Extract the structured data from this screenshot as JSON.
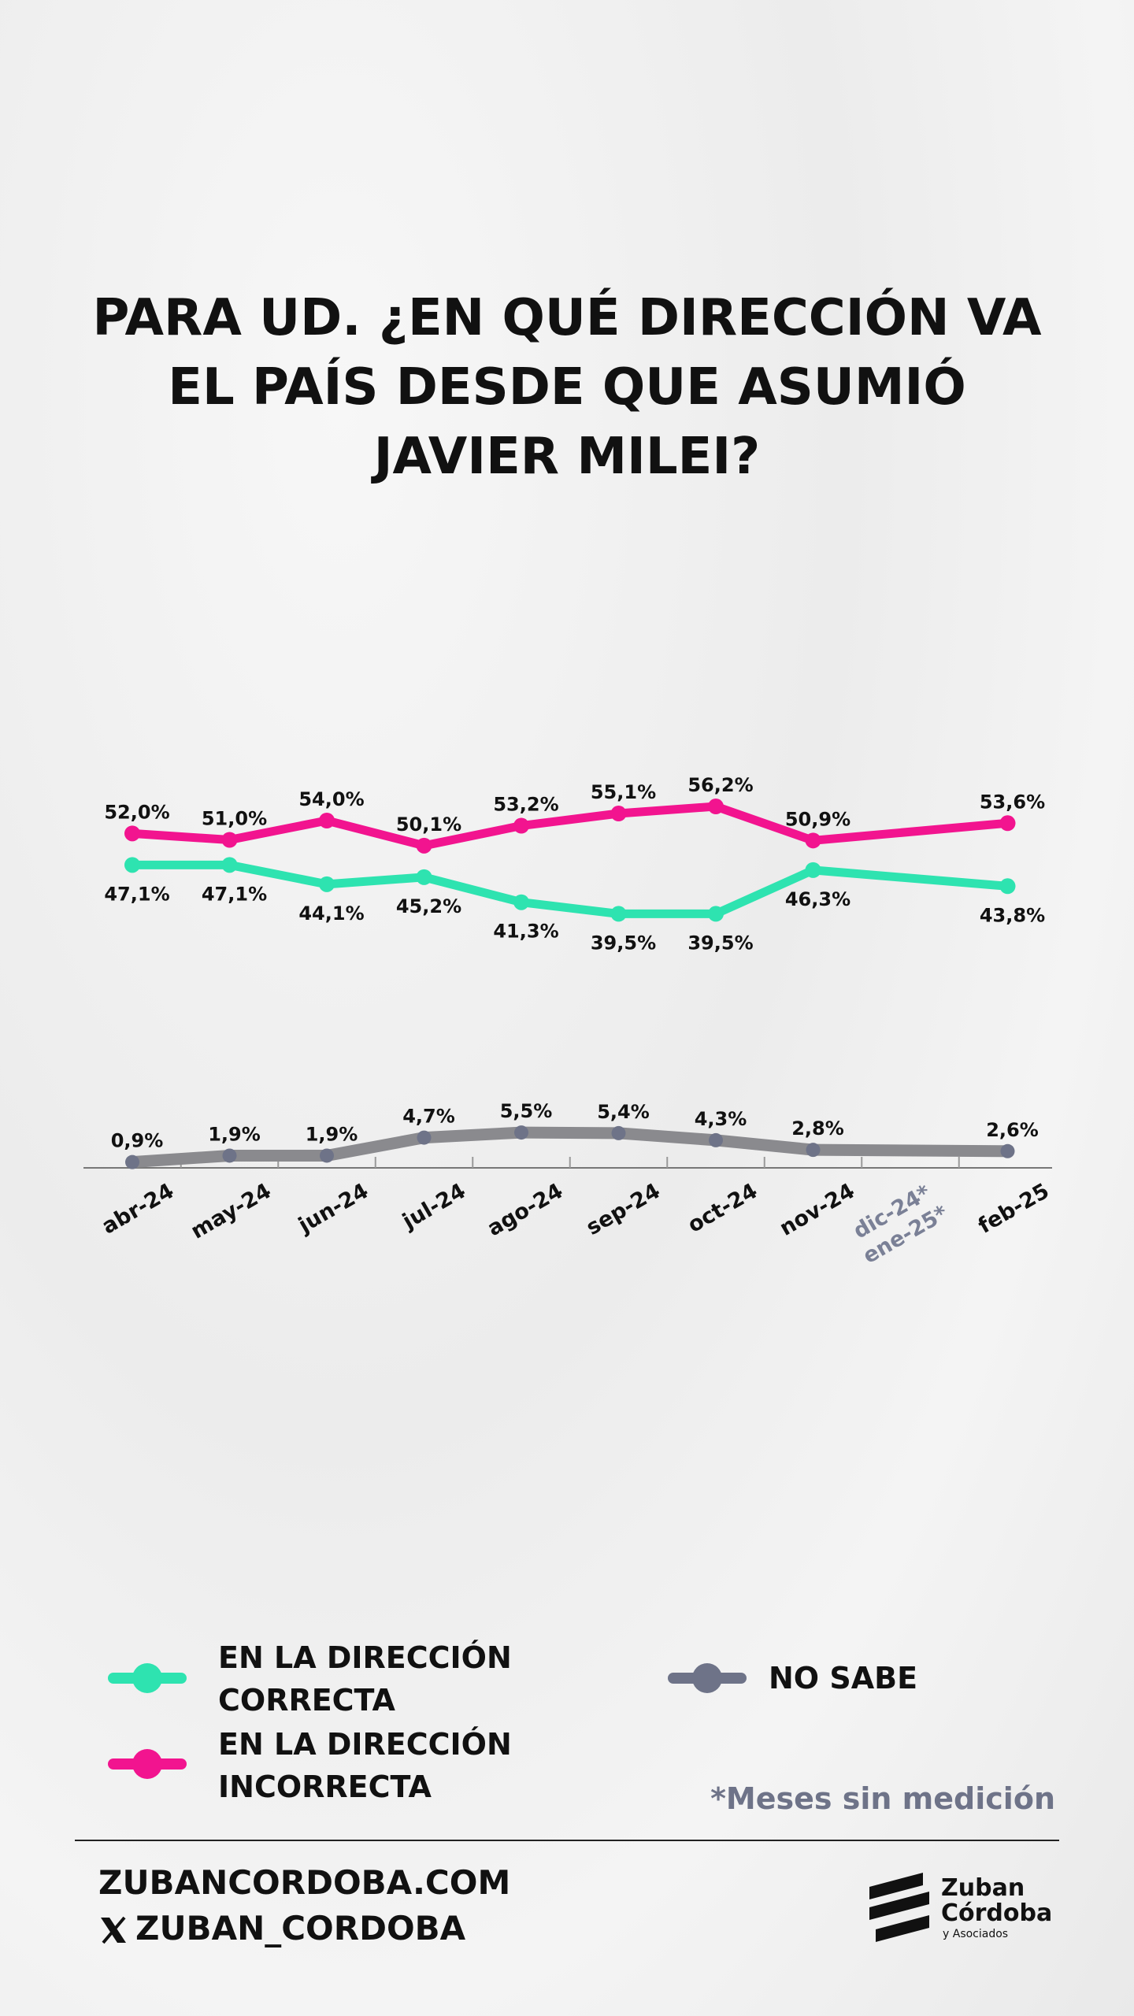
{
  "chart_data": {
    "type": "line",
    "title": "PARA UD. ¿EN QUÉ DIRECCIÓN VA EL PAÍS DESDE QUE ASUMIÓ JAVIER MILEI?",
    "categories": [
      "abr-24",
      "may-24",
      "jun-24",
      "jul-24",
      "ago-24",
      "sep-24",
      "oct-24",
      "nov-24",
      [
        "dic-24*",
        "ene-25*"
      ],
      "feb-25"
    ],
    "ylim": [
      0,
      60
    ],
    "series": [
      {
        "name": "EN LA DIRECCIÓN INCORRECTA",
        "color": "#f2148f",
        "values": [
          52.0,
          51.0,
          54.0,
          50.1,
          53.2,
          55.1,
          56.2,
          50.9,
          null,
          53.6
        ],
        "value_labels": [
          "52,0%",
          "51,0%",
          "54,0%",
          "50,1%",
          "53,2%",
          "55,1%",
          "56,2%",
          "50,9%",
          null,
          "53,6%"
        ]
      },
      {
        "name": "EN LA DIRECCIÓN CORRECTA",
        "color": "#2ee3b0",
        "values": [
          47.1,
          47.1,
          44.1,
          45.2,
          41.3,
          39.5,
          39.5,
          46.3,
          null,
          43.8
        ],
        "value_labels": [
          "47,1%",
          "47,1%",
          "44,1%",
          "45,2%",
          "41,3%",
          "39,5%",
          "39,5%",
          "46,3%",
          null,
          "43,8%"
        ]
      },
      {
        "name": "NO SABE",
        "color": "#6e7388",
        "values": [
          0.9,
          1.9,
          1.9,
          4.7,
          5.5,
          5.4,
          4.3,
          2.8,
          null,
          2.6
        ],
        "value_labels": [
          "0,9%",
          "1,9%",
          "1,9%",
          "4,7%",
          "5,5%",
          "5,4%",
          "4,3%",
          "2,8%",
          null,
          "2,6%"
        ]
      }
    ]
  },
  "note": "*Meses sin medición",
  "footer": {
    "website": "ZUBANCORDOBA.COM",
    "social": "ZUBAN_CORDOBA"
  },
  "logo": {
    "name1": "Zuban",
    "name2": "Córdoba",
    "tagline": "y Asociados"
  }
}
